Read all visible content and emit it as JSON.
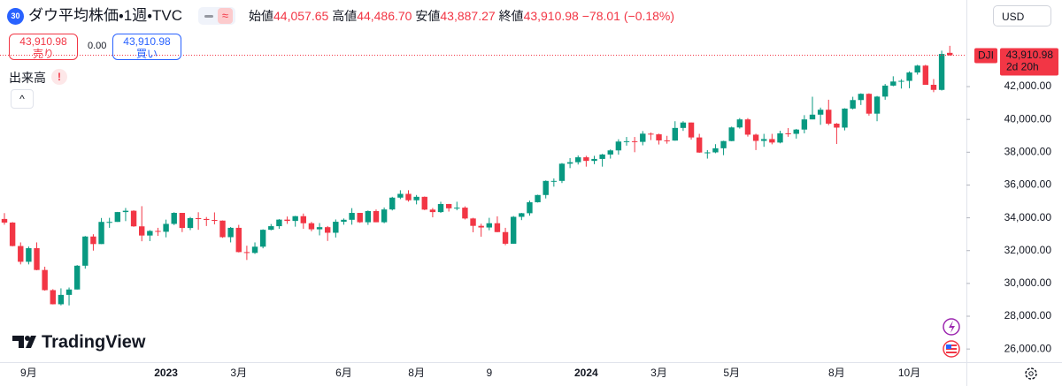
{
  "header": {
    "badge": "30",
    "symbol": "ダウ平均株価・1週・TVC",
    "open_label": "始値",
    "open": "44,057.65",
    "high_label": "高値",
    "high": "44,486.70",
    "low_label": "安値",
    "low": "43,887.27",
    "close_label": "終値",
    "close": "43,910.98",
    "change": "−78.01 (−0.18%)",
    "currency": "USD"
  },
  "trade": {
    "sell_price": "43,910.98",
    "sell_label": "売り",
    "spread": "0.00",
    "buy_price": "43,910.98",
    "buy_label": "買い"
  },
  "volume_label": "出来高",
  "volume_warning": "!",
  "logo": "TradingView",
  "chart_data": {
    "type": "candlestick",
    "categories": [
      null,
      null,
      null,
      "9月",
      null,
      null,
      null,
      null,
      null,
      null,
      null,
      null,
      null,
      null,
      null,
      null,
      null,
      null,
      null,
      null,
      "2023",
      null,
      null,
      null,
      null,
      null,
      null,
      null,
      null,
      "3月",
      null,
      null,
      null,
      null,
      null,
      null,
      null,
      null,
      null,
      null,
      null,
      null,
      "6月",
      null,
      null,
      null,
      null,
      null,
      null,
      null,
      null,
      "8月",
      null,
      null,
      null,
      null,
      null,
      null,
      null,
      null,
      "9",
      null,
      null,
      null,
      null,
      null,
      null,
      null,
      null,
      null,
      null,
      null,
      "2024",
      null,
      null,
      null,
      null,
      null,
      null,
      null,
      null,
      "3月",
      null,
      null,
      null,
      null,
      null,
      null,
      null,
      null,
      "5月",
      null,
      null,
      null,
      null,
      null,
      null,
      null,
      null,
      null,
      null,
      null,
      null,
      "8月",
      null,
      null,
      null,
      null,
      null,
      null,
      null,
      null,
      "10月",
      null,
      null,
      null,
      null,
      null
    ],
    "series": [
      {
        "name": "DJI",
        "up_color": "#089981",
        "down_color": "#f23645",
        "open": [
          33930,
          33710,
          32280,
          31320,
          32150,
          30820,
          29590,
          28730,
          29300,
          29630,
          31080,
          32860,
          32400,
          33750,
          33750,
          34350,
          34430,
          33480,
          32920,
          33200,
          33150,
          33630,
          34300,
          33380,
          33980,
          33930,
          33870,
          33830,
          32820,
          33390,
          31910,
          31860,
          32240,
          33270,
          33490,
          33890,
          33810,
          34100,
          33670,
          33300,
          33430,
          33090,
          33760,
          33880,
          34300,
          33730,
          34410,
          33730,
          34510,
          35230,
          35460,
          35070,
          35280,
          34500,
          34350,
          34840,
          34580,
          34620,
          33960,
          33510,
          33410,
          33670,
          33130,
          32420,
          34060,
          34280,
          34950,
          35390,
          36250,
          36250,
          37300,
          37390,
          37690,
          37470,
          37590,
          37860,
          38110,
          38650,
          38670,
          38630,
          39130,
          39090,
          38720,
          38710,
          39480,
          39810,
          38900,
          37980,
          37990,
          38240,
          38680,
          39510,
          40000,
          39070,
          38690,
          38800,
          38590,
          39150,
          39120,
          39380,
          40000,
          40290,
          40590,
          39740,
          39500,
          40660,
          41180,
          41560,
          40350,
          41390,
          42060,
          42310,
          42350,
          42860,
          43280,
          42110,
          41800,
          44057.65
        ],
        "high": [
          34290,
          33740,
          32500,
          32250,
          32500,
          31020,
          29650,
          29700,
          29750,
          31120,
          32890,
          33000,
          33990,
          34000,
          34360,
          34600,
          34460,
          34710,
          33250,
          33390,
          33890,
          34340,
          34300,
          34050,
          34340,
          34050,
          34330,
          33840,
          33440,
          33570,
          32300,
          32500,
          33300,
          33620,
          33920,
          34080,
          34120,
          34260,
          33750,
          33680,
          33500,
          33900,
          33960,
          34590,
          34300,
          34450,
          34510,
          34630,
          35280,
          35680,
          35680,
          35390,
          35300,
          34600,
          34980,
          34850,
          34980,
          34700,
          34000,
          33640,
          34000,
          34090,
          33390,
          34110,
          34300,
          35050,
          35410,
          36280,
          36400,
          37340,
          37640,
          37800,
          37780,
          37780,
          37900,
          38170,
          38790,
          38930,
          38930,
          39290,
          39200,
          39130,
          39000,
          39890,
          39890,
          39810,
          39120,
          38130,
          38490,
          38700,
          39560,
          40080,
          40080,
          39130,
          39120,
          39120,
          39310,
          39470,
          39420,
          40260,
          41380,
          40720,
          41200,
          39780,
          40680,
          41380,
          41590,
          41590,
          41430,
          42160,
          42630,
          42450,
          42930,
          43330,
          43330,
          42460,
          44190,
          44486.7
        ],
        "low": [
          33580,
          32260,
          31160,
          31160,
          30800,
          29560,
          28720,
          28660,
          28660,
          29630,
          30900,
          32000,
          32400,
          33390,
          33750,
          33800,
          33450,
          32570,
          32580,
          32900,
          32810,
          33560,
          33130,
          33250,
          33270,
          33500,
          33600,
          32780,
          32500,
          31890,
          31430,
          31800,
          32140,
          33240,
          33330,
          33630,
          33460,
          33330,
          33180,
          32930,
          32590,
          32800,
          33580,
          33580,
          33690,
          33570,
          33730,
          33670,
          34450,
          35140,
          34990,
          34820,
          34470,
          34030,
          34300,
          34380,
          34460,
          33900,
          33120,
          32850,
          33240,
          33120,
          32330,
          32420,
          33860,
          34130,
          34930,
          35180,
          35900,
          36120,
          37030,
          37250,
          37120,
          37270,
          37120,
          37610,
          37850,
          38400,
          38000,
          38420,
          38740,
          38470,
          38520,
          38700,
          39300,
          38770,
          37960,
          37610,
          37940,
          37820,
          38670,
          39440,
          38950,
          38130,
          38330,
          38480,
          38540,
          38940,
          38830,
          39150,
          40000,
          39670,
          39650,
          38500,
          39330,
          40610,
          40880,
          40230,
          39890,
          41200,
          42020,
          41880,
          41900,
          42730,
          42110,
          41660,
          41760,
          43887.27
        ],
        "close": [
          33710,
          32280,
          31320,
          32150,
          30820,
          29590,
          28730,
          29300,
          29630,
          31080,
          32860,
          32400,
          33750,
          33750,
          34350,
          34430,
          33480,
          32920,
          33200,
          33150,
          33630,
          34300,
          33380,
          33980,
          33930,
          33870,
          33830,
          32820,
          33390,
          31910,
          31860,
          32240,
          33270,
          33490,
          33890,
          33810,
          34100,
          33670,
          33300,
          33430,
          33090,
          33760,
          33880,
          34300,
          33730,
          34410,
          33730,
          34510,
          35230,
          35460,
          35070,
          35280,
          34500,
          34350,
          34840,
          34580,
          34620,
          33960,
          33510,
          33410,
          33670,
          33130,
          32420,
          34060,
          34280,
          34950,
          35390,
          36250,
          36250,
          37300,
          37390,
          37690,
          37470,
          37590,
          37860,
          38110,
          38650,
          38670,
          38630,
          39130,
          39090,
          38720,
          38710,
          39480,
          39810,
          38900,
          37980,
          37990,
          38240,
          38680,
          39510,
          40000,
          39070,
          38690,
          38800,
          38590,
          39150,
          39120,
          39380,
          40000,
          40290,
          40590,
          39740,
          39500,
          40660,
          41180,
          41560,
          40350,
          41390,
          42060,
          42310,
          42350,
          42860,
          43280,
          42110,
          41800,
          43988.99,
          43910.98
        ]
      }
    ],
    "ylim": [
      25200,
      47280
    ],
    "yticks": [
      {
        "value": 26000,
        "label": "26,000.00"
      },
      {
        "value": 28000,
        "label": "28,000.00"
      },
      {
        "value": 30000,
        "label": "30,000.00"
      },
      {
        "value": 32000,
        "label": "32,000.00"
      },
      {
        "value": 34000,
        "label": "34,000.00"
      },
      {
        "value": 36000,
        "label": "36,000.00"
      },
      {
        "value": 38000,
        "label": "38,000.00"
      },
      {
        "value": 40000,
        "label": "40,000.00"
      },
      {
        "value": 42000,
        "label": "42,000.00"
      }
    ],
    "grid": false,
    "last_price": {
      "value": 43910.98,
      "label": "43,910.98"
    },
    "countdown": "2d 20h"
  }
}
